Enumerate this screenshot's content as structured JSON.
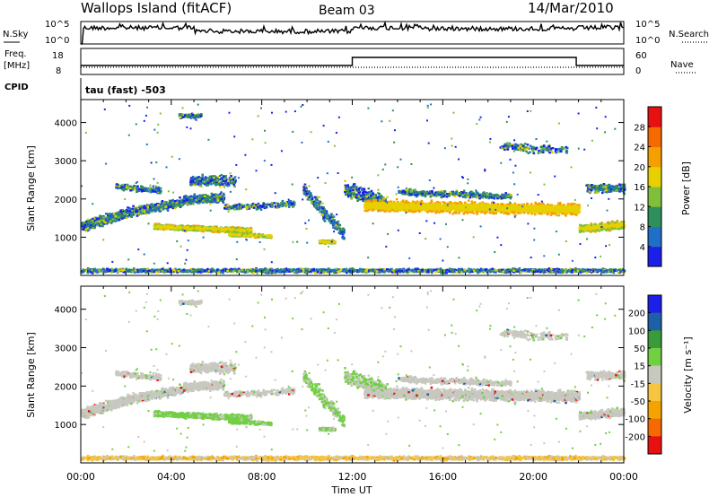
{
  "header": {
    "station": "Wallops Island (fitACF)",
    "beam": "Beam 03",
    "date": "14/Mar/2010"
  },
  "panels": {
    "nsky": {
      "left_label": "N.Sky",
      "left_top": "10^5",
      "left_bottom": "10^0",
      "right_top": "10^5",
      "right_bottom": "10^0",
      "right_label": "N.Search"
    },
    "freq": {
      "left_label_1": "Freq.",
      "left_label_2": "[MHz]",
      "left_top": "18",
      "left_bottom": "8",
      "right_top": "60",
      "right_bottom": "0",
      "right_label": "Nave"
    },
    "cpid": {
      "label": "CPID",
      "text": "tau (fast) -503"
    }
  },
  "colors": {
    "power_scale": [
      "#1a20e8",
      "#1f6fc8",
      "#2e8f5c",
      "#7fbf3a",
      "#e8d000",
      "#f5a000",
      "#f46a00",
      "#e81010"
    ],
    "velocity_scale": [
      "#e81010",
      "#f46a00",
      "#f5a300",
      "#f5c542",
      "#c8c8c0",
      "#70d040",
      "#3a9b3a",
      "#1e5fa8",
      "#1a20e8"
    ],
    "gray": "#c8c8c0"
  },
  "chart_data": [
    {
      "type": "heatmap",
      "name": "power",
      "ylabel": "Slant Range [km]",
      "ylim": [
        0,
        4600
      ],
      "yticks": [
        1000,
        2000,
        3000,
        4000
      ],
      "xlim": [
        0,
        24
      ],
      "xticks": [
        "00:00",
        "04:00",
        "08:00",
        "12:00",
        "16:00",
        "20:00",
        "00:00"
      ],
      "colorbar": {
        "label": "Power [dB]",
        "ticks": [
          4,
          8,
          12,
          16,
          20,
          24,
          28
        ],
        "range": [
          0,
          32
        ]
      }
    },
    {
      "type": "heatmap",
      "name": "velocity",
      "ylabel": "Slant Range [km]",
      "ylim": [
        0,
        4600
      ],
      "yticks": [
        1000,
        2000,
        3000,
        4000
      ],
      "xlim": [
        0,
        24
      ],
      "xticks": [
        "00:00",
        "04:00",
        "08:00",
        "12:00",
        "16:00",
        "20:00",
        "00:00"
      ],
      "xlabel": "Time UT",
      "colorbar": {
        "label": "Velocity [m s⁻¹]",
        "ticks": [
          200,
          100,
          50,
          15,
          -15,
          -50,
          -100,
          -200
        ]
      }
    }
  ]
}
